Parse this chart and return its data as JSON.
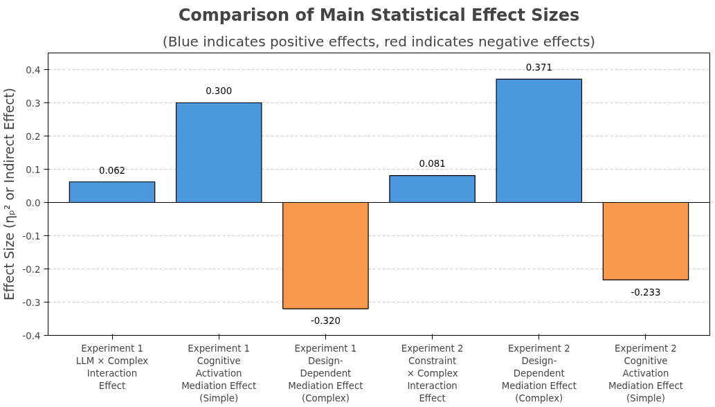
{
  "chart_data": {
    "type": "bar",
    "title": "Comparison of Main Statistical Effect Sizes",
    "subtitle": "(Blue indicates positive effects, red indicates negative effects)",
    "ylabel": "Effect Size (ηₚ² or Indirect Effect)",
    "categories": [
      "Experiment 1\nLLM × Complex\nInteraction\nEffect",
      "Experiment 1\nCognitive\nActivation\nMediation Effect\n(Simple)",
      "Experiment 1\nDesign-\nDependent\nMediation Effect\n(Complex)",
      "Experiment 2\nConstraint\n× Complex\nInteraction\nEffect",
      "Experiment 2\nDesign-\nDependent\nMediation Effect\n(Complex)",
      "Experiment 2\nCognitive\nActivation\nMediation Effect\n(Simple)"
    ],
    "values": [
      0.062,
      0.3,
      -0.32,
      0.081,
      0.371,
      -0.233
    ],
    "value_labels": [
      "0.062",
      "0.300",
      "-0.320",
      "0.081",
      "0.371",
      "-0.233"
    ],
    "colors": [
      "#4a97dd",
      "#4a97dd",
      "#f79a4f",
      "#4a97dd",
      "#4a97dd",
      "#f79a4f"
    ],
    "ylim": [
      -0.4,
      0.45
    ],
    "yticks": [
      {
        "value": -0.4,
        "label": "-0.4"
      },
      {
        "value": -0.3,
        "label": "-0.3"
      },
      {
        "value": -0.2,
        "label": "-0.2"
      },
      {
        "value": -0.1,
        "label": "-0.1"
      },
      {
        "value": 0,
        "label": "0.0"
      },
      {
        "value": 0.1,
        "label": "0.1"
      },
      {
        "value": 0.2,
        "label": "0.2"
      },
      {
        "value": 0.3,
        "label": "0.3"
      },
      {
        "value": 0.4,
        "label": "0.4"
      }
    ],
    "ref_lines": [
      {
        "axis": "y",
        "value": 0,
        "color": "#000000"
      }
    ],
    "grid": "y"
  }
}
